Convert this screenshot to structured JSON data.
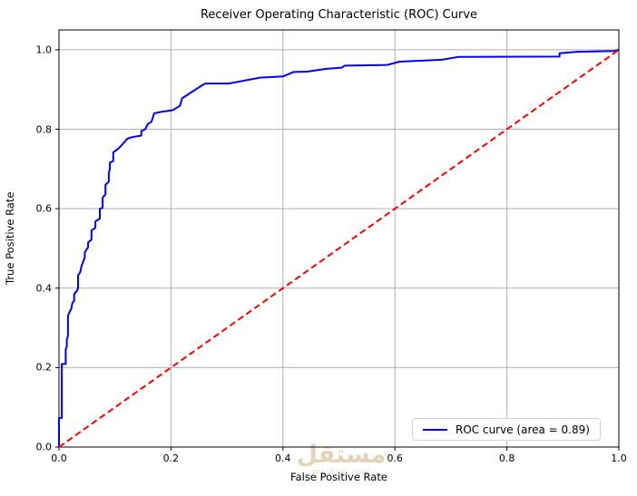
{
  "chart_data": {
    "type": "line",
    "title": "Receiver Operating Characteristic (ROC) Curve",
    "xlabel": "False Positive Rate",
    "ylabel": "True Positive Rate",
    "xlim": [
      0.0,
      1.0
    ],
    "ylim": [
      0.0,
      1.05
    ],
    "grid": true,
    "legend_position": "lower right",
    "x_ticks": [
      "0.0",
      "0.2",
      "0.4",
      "0.6",
      "0.8",
      "1.0"
    ],
    "x_tick_values": [
      0.0,
      0.2,
      0.4,
      0.6,
      0.8,
      1.0
    ],
    "y_ticks": [
      "0.0",
      "0.2",
      "0.4",
      "0.6",
      "0.8",
      "1.0"
    ],
    "y_tick_values": [
      0.0,
      0.2,
      0.4,
      0.6,
      0.8,
      1.0
    ],
    "series": [
      {
        "name": "ROC curve (area = 0.89)",
        "color": "#0000ff",
        "style": "solid",
        "in_legend": true,
        "points": [
          [
            0.0,
            0.0
          ],
          [
            0.0,
            0.073
          ],
          [
            0.005,
            0.073
          ],
          [
            0.005,
            0.209
          ],
          [
            0.012,
            0.209
          ],
          [
            0.012,
            0.245
          ],
          [
            0.014,
            0.253
          ],
          [
            0.014,
            0.27
          ],
          [
            0.016,
            0.28
          ],
          [
            0.016,
            0.33
          ],
          [
            0.019,
            0.34
          ],
          [
            0.022,
            0.348
          ],
          [
            0.024,
            0.363
          ],
          [
            0.027,
            0.368
          ],
          [
            0.027,
            0.385
          ],
          [
            0.032,
            0.393
          ],
          [
            0.034,
            0.4
          ],
          [
            0.034,
            0.432
          ],
          [
            0.038,
            0.44
          ],
          [
            0.04,
            0.455
          ],
          [
            0.046,
            0.477
          ],
          [
            0.046,
            0.49
          ],
          [
            0.052,
            0.503
          ],
          [
            0.052,
            0.515
          ],
          [
            0.058,
            0.522
          ],
          [
            0.058,
            0.545
          ],
          [
            0.065,
            0.552
          ],
          [
            0.065,
            0.568
          ],
          [
            0.073,
            0.575
          ],
          [
            0.073,
            0.6
          ],
          [
            0.078,
            0.602
          ],
          [
            0.078,
            0.628
          ],
          [
            0.083,
            0.636
          ],
          [
            0.083,
            0.66
          ],
          [
            0.089,
            0.668
          ],
          [
            0.089,
            0.69
          ],
          [
            0.091,
            0.7
          ],
          [
            0.091,
            0.716
          ],
          [
            0.097,
            0.72
          ],
          [
            0.097,
            0.742
          ],
          [
            0.105,
            0.75
          ],
          [
            0.11,
            0.757
          ],
          [
            0.122,
            0.776
          ],
          [
            0.13,
            0.78
          ],
          [
            0.147,
            0.784
          ],
          [
            0.147,
            0.795
          ],
          [
            0.154,
            0.8
          ],
          [
            0.159,
            0.814
          ],
          [
            0.165,
            0.818
          ],
          [
            0.17,
            0.84
          ],
          [
            0.184,
            0.844
          ],
          [
            0.203,
            0.848
          ],
          [
            0.216,
            0.859
          ],
          [
            0.22,
            0.878
          ],
          [
            0.257,
            0.912
          ],
          [
            0.262,
            0.915
          ],
          [
            0.303,
            0.915
          ],
          [
            0.359,
            0.93
          ],
          [
            0.4,
            0.933
          ],
          [
            0.419,
            0.944
          ],
          [
            0.443,
            0.945
          ],
          [
            0.478,
            0.952
          ],
          [
            0.505,
            0.955
          ],
          [
            0.51,
            0.96
          ],
          [
            0.586,
            0.962
          ],
          [
            0.608,
            0.97
          ],
          [
            0.684,
            0.975
          ],
          [
            0.713,
            0.982
          ],
          [
            0.894,
            0.983
          ],
          [
            0.894,
            0.991
          ],
          [
            0.927,
            0.995
          ],
          [
            0.992,
            0.997
          ],
          [
            1.0,
            1.0
          ]
        ]
      },
      {
        "name": "chance-diagonal",
        "color": "#ff0000",
        "style": "dashed",
        "in_legend": false,
        "points": [
          [
            0.0,
            0.0
          ],
          [
            1.0,
            1.0
          ]
        ]
      }
    ],
    "auc": 0.89
  },
  "legend": {
    "label": "ROC curve (area = 0.89)"
  },
  "watermark": {
    "text": "مستقل",
    "subtext": "mostaql.com"
  },
  "colors": {
    "roc_curve": "#0000ff",
    "diagonal": "#ff0000",
    "gridline": "#b0b0b0",
    "background": "#ffffff",
    "text": "#000000"
  }
}
